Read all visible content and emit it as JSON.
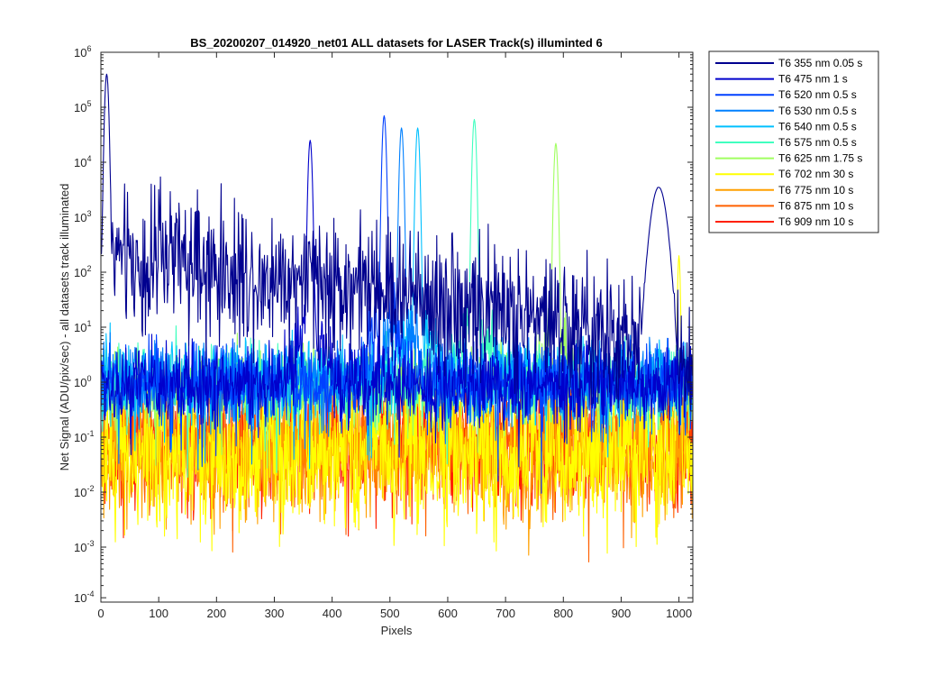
{
  "chart_data": {
    "type": "line",
    "title": "BS_20200207_014920_net01 ALL datasets for LASER  Track(s) illuminted 6",
    "xlabel": "Pixels",
    "ylabel": "Net Signal (ADU/pix/sec) - all datasets track illuminated",
    "xlim": [
      0,
      1024
    ],
    "ylim": [
      0.0001,
      1000000
    ],
    "yscale": "log",
    "xticks": [
      0,
      100,
      200,
      300,
      400,
      500,
      600,
      700,
      800,
      900,
      1000
    ],
    "xtick_labels": [
      "0",
      "100",
      "200",
      "300",
      "400",
      "500",
      "600",
      "700",
      "800",
      "900",
      "1000"
    ],
    "yticks": [
      {
        "base": "10",
        "exp": "-4"
      },
      {
        "base": "10",
        "exp": "-3"
      },
      {
        "base": "10",
        "exp": "-2"
      },
      {
        "base": "10",
        "exp": "-1"
      },
      {
        "base": "10",
        "exp": "0"
      },
      {
        "base": "10",
        "exp": "1"
      },
      {
        "base": "10",
        "exp": "2"
      },
      {
        "base": "10",
        "exp": "3"
      },
      {
        "base": "10",
        "exp": "4"
      },
      {
        "base": "10",
        "exp": "5"
      },
      {
        "base": "10",
        "exp": "6"
      }
    ],
    "legend_position": "outside-right-top",
    "series": [
      {
        "name": "T6 355 nm 0.05 s",
        "color": "#00008f",
        "baseline": 0.3,
        "scatter_decades": 0.6,
        "peaks": [
          [
            10,
            400000,
            3
          ],
          [
            965,
            3500,
            12
          ]
        ],
        "shoulder": [
          [
            5,
            150,
            40
          ],
          [
            30,
            100,
            300
          ],
          [
            120,
            100,
            25
          ],
          [
            400,
            40,
            350
          ]
        ]
      },
      {
        "name": "T6 475 nm 1 s",
        "color": "#0000cc",
        "baseline": 0.9,
        "scatter_decades": 0.35,
        "peaks": [
          [
            362,
            25000,
            3
          ]
        ],
        "shoulder": [
          [
            362,
            8,
            25
          ]
        ]
      },
      {
        "name": "T6 520 nm 0.5 s",
        "color": "#0040ff",
        "baseline": 1.0,
        "scatter_decades": 0.35,
        "peaks": [
          [
            490,
            70000,
            3
          ]
        ],
        "shoulder": [
          [
            490,
            12,
            25
          ]
        ]
      },
      {
        "name": "T6 530 nm 0.5 s",
        "color": "#0080ff",
        "baseline": 1.0,
        "scatter_decades": 0.35,
        "peaks": [
          [
            520,
            42000,
            3
          ]
        ],
        "shoulder": [
          [
            520,
            10,
            25
          ]
        ]
      },
      {
        "name": "T6 540 nm 0.5 s",
        "color": "#00c0ff",
        "baseline": 1.2,
        "scatter_decades": 0.35,
        "peaks": [
          [
            548,
            42000,
            3
          ]
        ],
        "shoulder": [
          [
            548,
            10,
            25
          ]
        ]
      },
      {
        "name": "T6 575 nm 0.5 s",
        "color": "#40ffbf",
        "baseline": 1.0,
        "scatter_decades": 0.35,
        "peaks": [
          [
            646,
            60000,
            3
          ]
        ],
        "shoulder": [
          [
            646,
            10,
            25
          ]
        ]
      },
      {
        "name": "T6 625 nm 1.75 s",
        "color": "#a0ff60",
        "baseline": 0.8,
        "scatter_decades": 0.35,
        "peaks": [
          [
            787,
            22000,
            3
          ]
        ],
        "shoulder": [
          [
            787,
            6,
            25
          ]
        ]
      },
      {
        "name": "T6 702 nm 30 s",
        "color": "#ffff00",
        "baseline": 0.05,
        "scatter_decades": 0.7,
        "peaks": [
          [
            1000,
            200,
            2
          ]
        ],
        "shoulder": []
      },
      {
        "name": "T6 775 nm 10 s",
        "color": "#ffa000",
        "baseline": 0.06,
        "scatter_decades": 0.55,
        "peaks": [],
        "shoulder": []
      },
      {
        "name": "T6 875 nm 10 s",
        "color": "#ff6000",
        "baseline": 0.07,
        "scatter_decades": 0.5,
        "peaks": [],
        "shoulder": []
      },
      {
        "name": "T6 909 nm 10 s",
        "color": "#ff2000",
        "baseline": 0.07,
        "scatter_decades": 0.5,
        "peaks": [],
        "shoulder": []
      }
    ]
  }
}
